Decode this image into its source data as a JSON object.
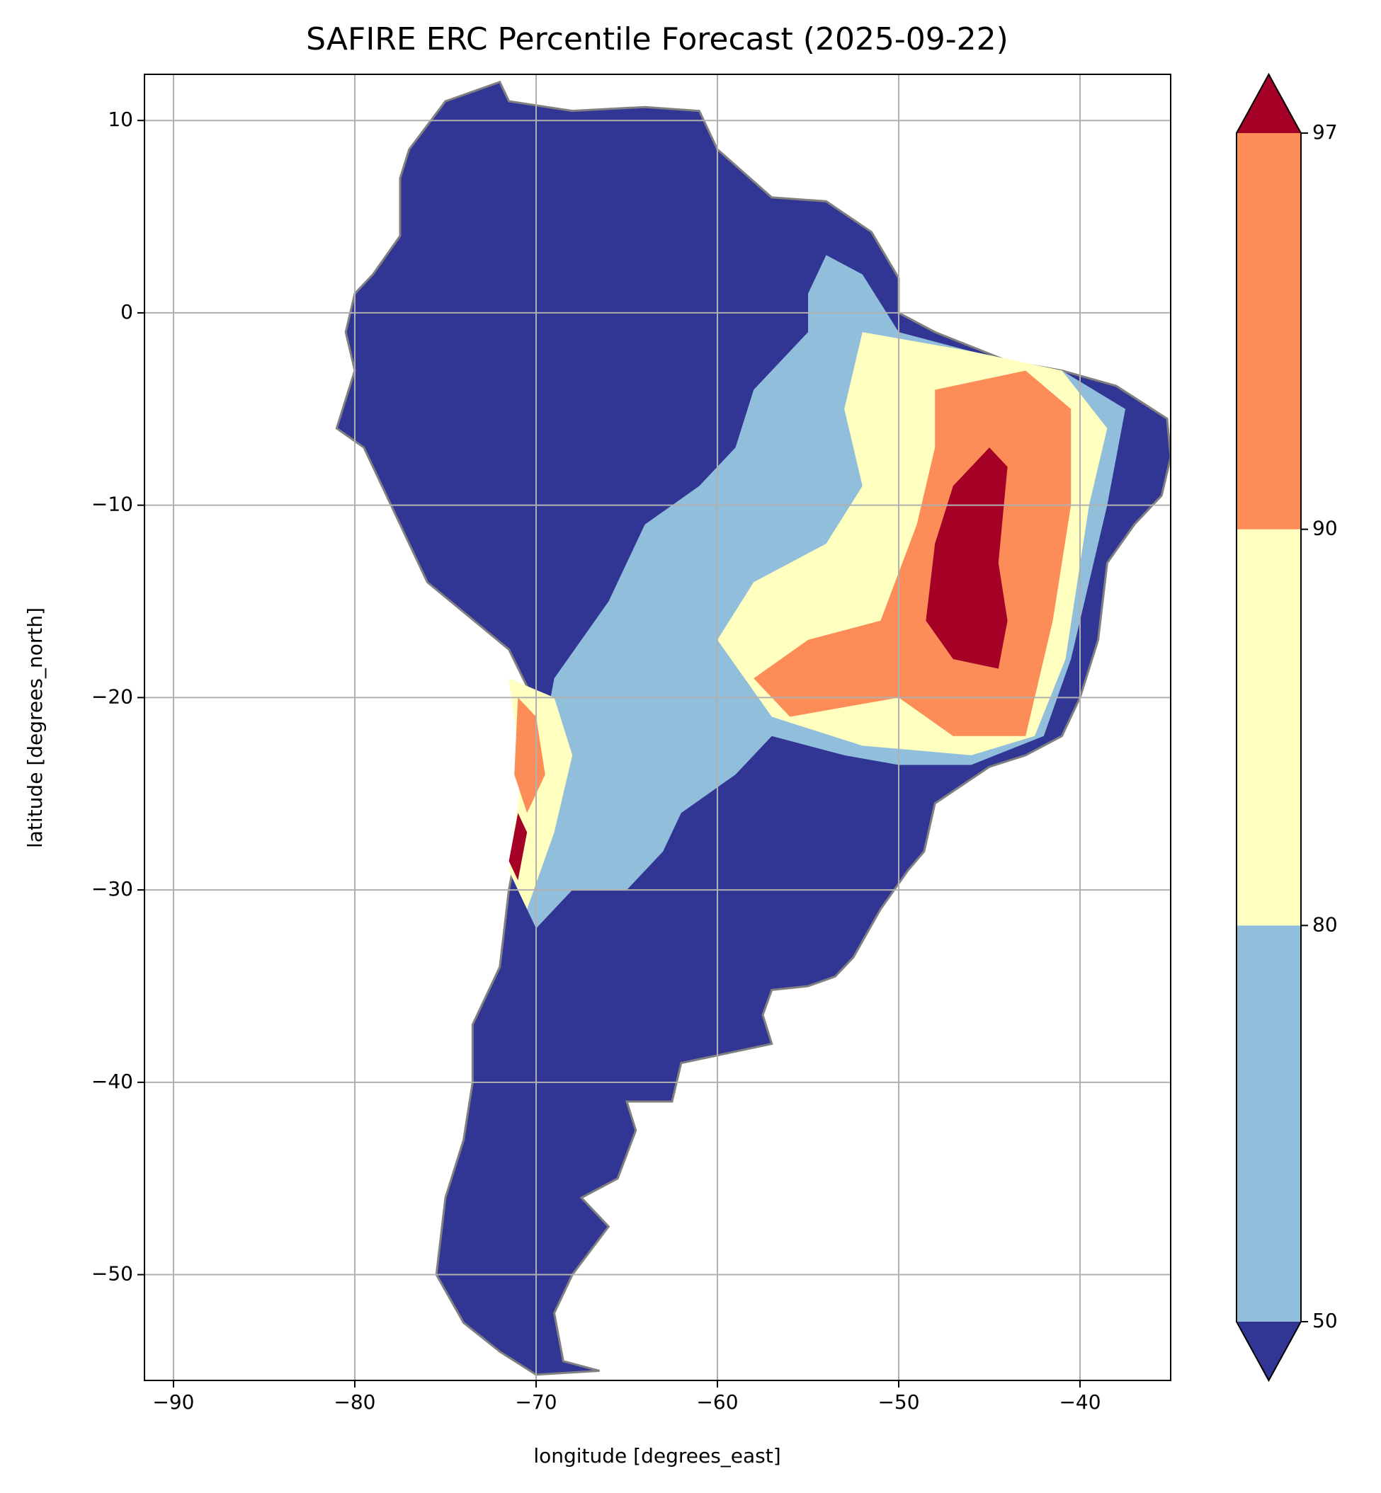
{
  "chart_data": {
    "type": "map",
    "title": "SAFIRE ERC Percentile Forecast (2025-09-22)",
    "xlabel": "longitude [degrees_east]",
    "ylabel": "latitude [degrees_north]",
    "xlim": [
      -91.6,
      -35
    ],
    "ylim": [
      -55.5,
      12.4
    ],
    "xticks": [
      {
        "value": -90,
        "label": "−90"
      },
      {
        "value": -80,
        "label": "−80"
      },
      {
        "value": -70,
        "label": "−70"
      },
      {
        "value": -60,
        "label": "−60"
      },
      {
        "value": -50,
        "label": "−50"
      },
      {
        "value": -40,
        "label": "−40"
      }
    ],
    "yticks": [
      {
        "value": -50,
        "label": "−50"
      },
      {
        "value": -40,
        "label": "−40"
      },
      {
        "value": -30,
        "label": "−30"
      },
      {
        "value": -20,
        "label": "−20"
      },
      {
        "value": -10,
        "label": "−10"
      },
      0,
      10
    ],
    "grid": true,
    "colorbar": {
      "levels": [
        50,
        80,
        90,
        97
      ],
      "colors": [
        "#91bfdb",
        "#ffffbf",
        "#fc8d59"
      ],
      "under_color": "#313695",
      "over_color": "#a50026"
    }
  }
}
